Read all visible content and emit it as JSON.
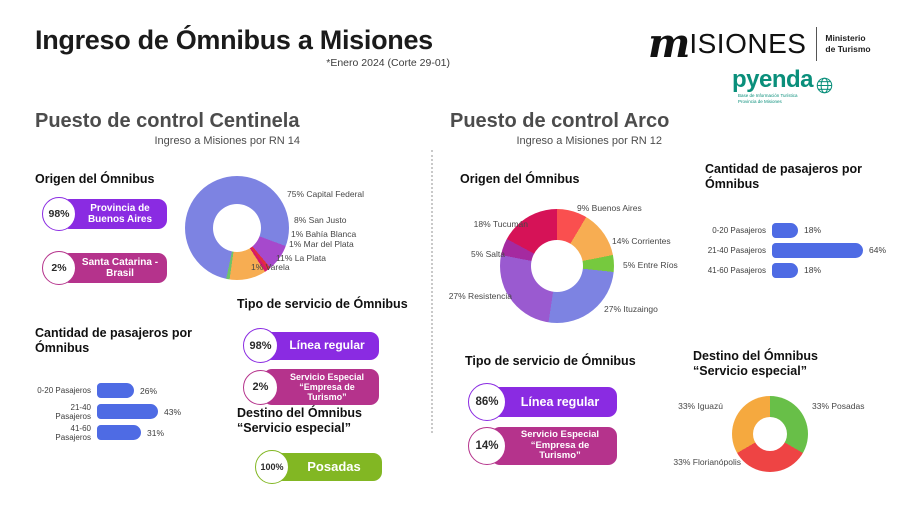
{
  "header": {
    "title": "Ingreso de Ómnibus a Misiones",
    "subtitle": "*Enero 2024 (Corte 29-01)",
    "logo_misiones": {
      "script_letter": "m",
      "wordmark": "ISIONES",
      "ministry_line1": "Ministerio",
      "ministry_line2": "de Turismo"
    },
    "logo_pyenda": {
      "wordmark": "pyenda",
      "tagline_line1": "Base de Información Turística",
      "tagline_line2": "Provincia de Misiones",
      "color": "#0a8f7b"
    }
  },
  "centinela": {
    "title": "Puesto de control Centinela",
    "subtitle": "Ingreso a Misiones por RN 14",
    "origin_heading": "Origen del Ómnibus",
    "origin_pills": [
      {
        "value": "98%",
        "label": "Provincia de Buenos Aires",
        "color": "#8a2be2"
      },
      {
        "value": "2%",
        "label": "Santa Catarina - Brasil",
        "color": "#b5338c"
      }
    ],
    "passengers_heading": "Cantidad de pasajeros por Ómnibus",
    "service_heading": "Tipo de servicio de Ómnibus",
    "service_pills": [
      {
        "value": "98%",
        "label": "Línea regular",
        "color": "#8a2be2"
      },
      {
        "value": "2%",
        "label": "Servicio Especial “Empresa de Turismo”",
        "color": "#b5338c"
      }
    ],
    "destination_heading_line1": "Destino del Ómnibus",
    "destination_heading_line2": "“Servicio especial”",
    "destination_pills": [
      {
        "value": "100%",
        "label": "Posadas",
        "color": "#82b723"
      }
    ]
  },
  "arco": {
    "title": "Puesto de control Arco",
    "subtitle": "Ingreso a Misiones por RN 12",
    "origin_heading": "Origen del Ómnibus",
    "passengers_heading": "Cantidad de pasajeros por Ómnibus",
    "service_heading": "Tipo de servicio de Ómnibus",
    "service_pills": [
      {
        "value": "86%",
        "label": "Línea regular",
        "color": "#8a2be2"
      },
      {
        "value": "14%",
        "label": "Servicio Especial “Empresa de Turismo”",
        "color": "#b5338c"
      }
    ],
    "destination_heading_line1": "Destino del Ómnibus",
    "destination_heading_line2": "“Servicio especial”"
  },
  "chart_data": [
    {
      "id": "centinela-origen",
      "type": "pie",
      "donut": true,
      "title": "Origen del Ómnibus — Puesto de control Centinela",
      "labels": [
        "Capital Federal",
        "San Justo",
        "Bahía Blanca",
        "Mar del Plata",
        "La Plata",
        "Varela"
      ],
      "values": [
        75,
        8,
        1,
        1,
        11,
        1
      ],
      "unit": "%",
      "colors": [
        "#7d83e2",
        "#a649cc",
        "#e12f3d",
        "#d6186b",
        "#f7ad52",
        "#70c468"
      ],
      "label_format": "{value}% {label}",
      "legend": "none"
    },
    {
      "id": "centinela-pasajeros",
      "type": "bar",
      "title": "Cantidad de pasajeros por Ómnibus — Puesto de control Centinela",
      "categories": [
        "0-20 Pasajeros",
        "21-40 Pasajeros",
        "41-60 Pasajeros"
      ],
      "values": [
        26,
        43,
        31
      ],
      "unit": "%",
      "bar_color": "#4e6be4",
      "orientation": "horizontal",
      "grid": false
    },
    {
      "id": "arco-origen",
      "type": "pie",
      "donut": true,
      "title": "Origen del Ómnibus — Puesto de control Arco",
      "labels": [
        "Buenos Aires",
        "Corrientes",
        "Entre Ríos",
        "Ituzaingo",
        "Resistencia",
        "Salta",
        "Tucumán"
      ],
      "values": [
        9,
        14,
        5,
        27,
        27,
        5,
        18
      ],
      "unit": "%",
      "colors": [
        "#fa4f4f",
        "#f7ad52",
        "#76c93e",
        "#7d83e2",
        "#9a5ad0",
        "#a52aa0",
        "#d61257"
      ],
      "label_format": "{value}% {label}",
      "legend": "none"
    },
    {
      "id": "arco-pasajeros",
      "type": "bar",
      "title": "Cantidad de pasajeros por Ómnibus — Puesto de control Arco",
      "categories": [
        "0-20 Pasajeros",
        "21-40 Pasajeros",
        "41-60 Pasajeros"
      ],
      "values": [
        18,
        64,
        18
      ],
      "unit": "%",
      "bar_color": "#4e6be4",
      "orientation": "horizontal",
      "grid": false
    },
    {
      "id": "arco-destino",
      "type": "pie",
      "donut": true,
      "title": "Destino del Ómnibus “Servicio especial” — Puesto de control Arco",
      "labels": [
        "Posadas",
        "Florianópolis",
        "Iguazú"
      ],
      "values": [
        33,
        33,
        33
      ],
      "unit": "%",
      "colors": [
        "#68bf48",
        "#ee4444",
        "#f5a93f"
      ],
      "label_format": "{value}% {label}",
      "legend": "none"
    }
  ]
}
